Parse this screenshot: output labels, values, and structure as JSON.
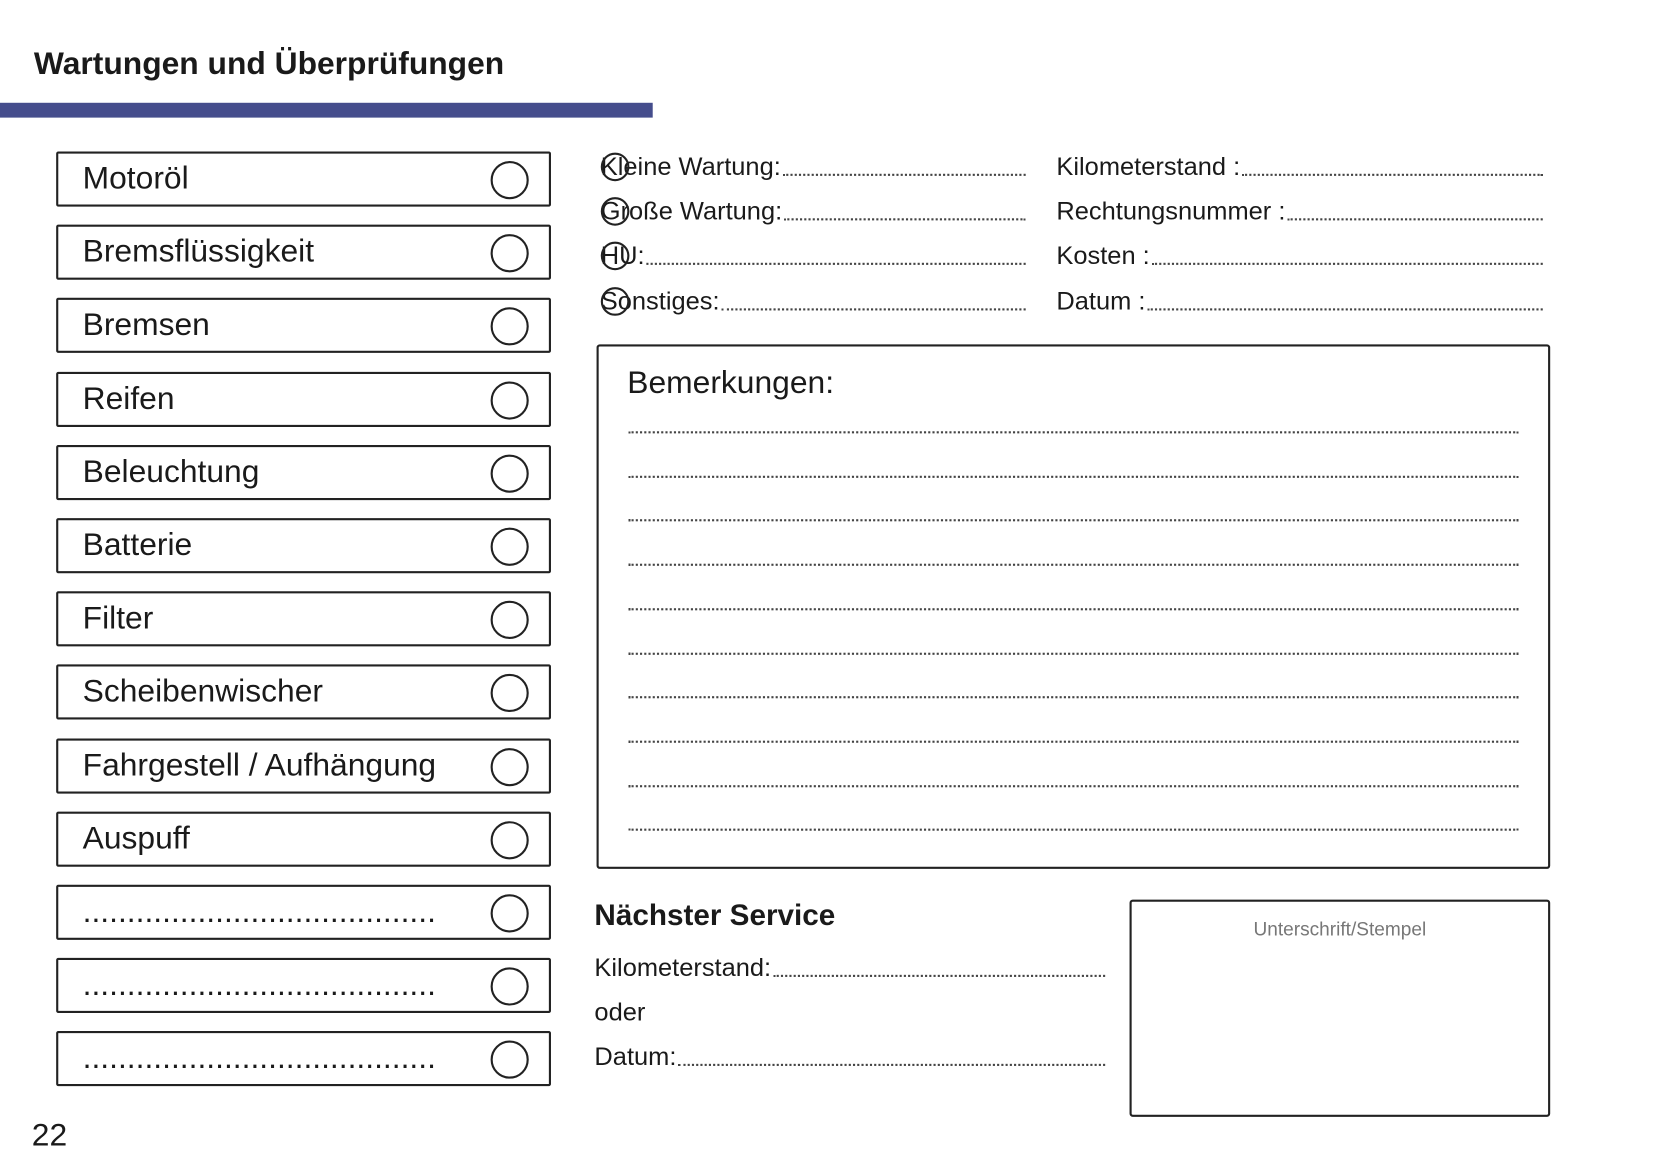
{
  "header": {
    "title": "Wartungen und Überprüfungen",
    "accent_color": "#454d8c"
  },
  "checklist": [
    {
      "label": "Motoröl"
    },
    {
      "label": "Bremsflüssigkeit"
    },
    {
      "label": "Bremsen"
    },
    {
      "label": "Reifen"
    },
    {
      "label": "Beleuchtung"
    },
    {
      "label": "Batterie"
    },
    {
      "label": "Filter"
    },
    {
      "label": "Scheibenwischer"
    },
    {
      "label": "Fahrgestell / Aufhängung"
    },
    {
      "label": "Auspuff"
    },
    {
      "label": "........................................"
    },
    {
      "label": "........................................"
    },
    {
      "label": "........................................"
    }
  ],
  "service_type": [
    {
      "label": "Kleine Wartung:"
    },
    {
      "label": "Große Wartung:"
    },
    {
      "label": "HU:"
    },
    {
      "label": "Sonstiges:"
    }
  ],
  "details": [
    {
      "label": "Kilometerstand :"
    },
    {
      "label": "Rechtungsnummer :"
    },
    {
      "label": "Kosten :"
    },
    {
      "label": "Datum :"
    }
  ],
  "remarks": {
    "title": "Bemerkungen:"
  },
  "next_service": {
    "title": "Nächster Service",
    "km_label": "Kilometerstand:",
    "or_label": "oder",
    "date_label": "Datum:"
  },
  "signature": {
    "label": "Unterschrift/Stempel"
  },
  "page_number": "22"
}
